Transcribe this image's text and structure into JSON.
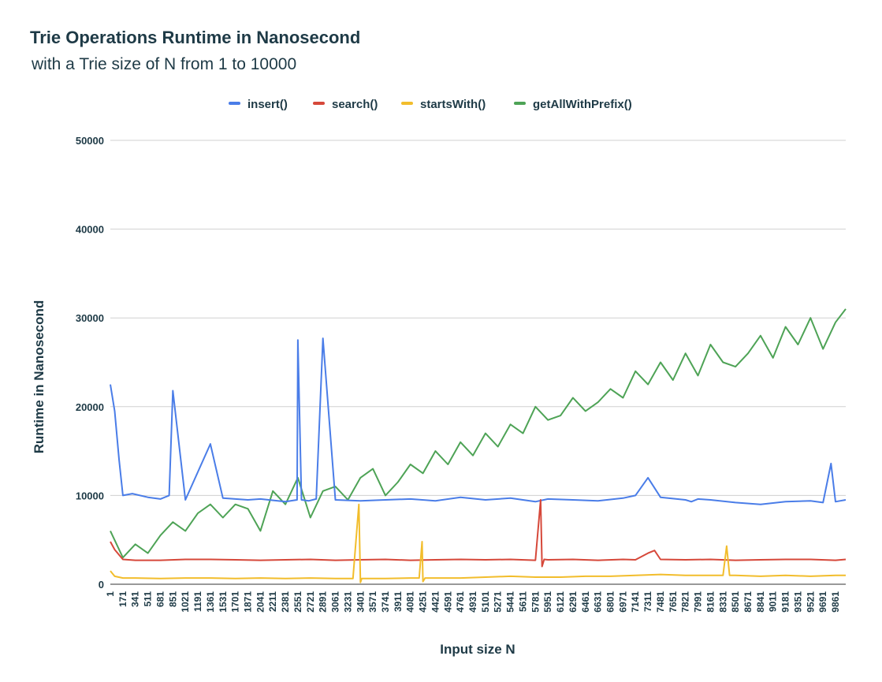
{
  "chart_data": {
    "type": "line",
    "title": "Trie Operations Runtime in Nanosecond",
    "subtitle": "with a Trie size of N from 1 to 10000",
    "xlabel": "Input size N",
    "ylabel": "Runtime in Nanosecond",
    "ylim": [
      0,
      50000
    ],
    "yticks": [
      0,
      10000,
      20000,
      30000,
      40000,
      50000
    ],
    "xlim": [
      1,
      10000
    ],
    "xticks": [
      "1",
      "171",
      "341",
      "511",
      "681",
      "851",
      "1021",
      "1191",
      "1361",
      "1531",
      "1701",
      "1871",
      "2041",
      "2211",
      "2381",
      "2551",
      "2721",
      "2891",
      "3061",
      "3231",
      "3401",
      "3571",
      "3741",
      "3911",
      "4081",
      "4251",
      "4421",
      "4591",
      "4761",
      "4931",
      "5101",
      "5271",
      "5441",
      "5611",
      "5781",
      "5951",
      "6121",
      "6291",
      "6461",
      "6631",
      "6801",
      "6971",
      "7141",
      "7311",
      "7481",
      "7651",
      "7821",
      "7991",
      "8161",
      "8331",
      "8501",
      "8671",
      "8841",
      "9011",
      "9181",
      "9351",
      "9521",
      "9691",
      "9861"
    ],
    "grid": true,
    "legend_position": "top",
    "series": [
      {
        "name": "insert()",
        "color": "#4a7de8",
        "x": [
          1,
          60,
          120,
          171,
          300,
          511,
          681,
          800,
          851,
          1021,
          1361,
          1531,
          1871,
          2041,
          2381,
          2540,
          2551,
          2600,
          2700,
          2800,
          2891,
          3061,
          3401,
          3741,
          4081,
          4421,
          4761,
          5101,
          5441,
          5781,
          5951,
          6291,
          6631,
          6971,
          7141,
          7311,
          7481,
          7821,
          7900,
          7991,
          8161,
          8501,
          8841,
          9181,
          9521,
          9691,
          9800,
          9861,
          10000
        ],
        "y": [
          22500,
          19500,
          14000,
          10000,
          10200,
          9800,
          9600,
          10000,
          21800,
          9500,
          15800,
          9700,
          9500,
          9600,
          9300,
          9500,
          27500,
          9500,
          9400,
          9600,
          27700,
          9500,
          9400,
          9500,
          9600,
          9400,
          9800,
          9500,
          9700,
          9300,
          9600,
          9500,
          9400,
          9700,
          10000,
          12000,
          9800,
          9500,
          9300,
          9600,
          9500,
          9200,
          9000,
          9300,
          9400,
          9200,
          13600,
          9300,
          9500
        ]
      },
      {
        "name": "search()",
        "color": "#d6483a",
        "x": [
          1,
          60,
          171,
          341,
          681,
          1021,
          1361,
          1701,
          2041,
          2381,
          2721,
          3061,
          3401,
          3741,
          4081,
          4421,
          4761,
          5101,
          5441,
          5781,
          5851,
          5871,
          5900,
          5951,
          6291,
          6631,
          6971,
          7141,
          7311,
          7400,
          7481,
          7821,
          8161,
          8501,
          8841,
          9181,
          9521,
          9861,
          10000
        ],
        "y": [
          4800,
          3900,
          2800,
          2700,
          2700,
          2800,
          2800,
          2750,
          2700,
          2750,
          2800,
          2700,
          2750,
          2800,
          2700,
          2750,
          2800,
          2750,
          2800,
          2700,
          9500,
          2000,
          2800,
          2750,
          2800,
          2700,
          2800,
          2750,
          3500,
          3800,
          2800,
          2750,
          2800,
          2700,
          2750,
          2800,
          2800,
          2700,
          2800
        ]
      },
      {
        "name": "startsWith()",
        "color": "#f2bd2c",
        "x": [
          1,
          60,
          171,
          341,
          681,
          1021,
          1361,
          1701,
          2041,
          2381,
          2721,
          3061,
          3300,
          3380,
          3401,
          3420,
          3741,
          4081,
          4200,
          4240,
          4251,
          4280,
          4421,
          4761,
          5101,
          5441,
          5781,
          6121,
          6461,
          6801,
          7141,
          7481,
          7821,
          8161,
          8331,
          8381,
          8420,
          8501,
          8841,
          9181,
          9521,
          9861,
          10000
        ],
        "y": [
          1500,
          900,
          700,
          700,
          650,
          700,
          700,
          650,
          700,
          650,
          700,
          650,
          650,
          9000,
          200,
          650,
          650,
          700,
          700,
          4800,
          300,
          700,
          700,
          700,
          800,
          900,
          800,
          800,
          900,
          900,
          1000,
          1100,
          1000,
          1000,
          1000,
          4300,
          1000,
          1000,
          900,
          1000,
          900,
          1000,
          1000
        ]
      },
      {
        "name": "getAllWithPrefix()",
        "color": "#4ea356",
        "x": [
          1,
          171,
          341,
          511,
          681,
          851,
          1021,
          1191,
          1361,
          1531,
          1701,
          1871,
          2041,
          2211,
          2381,
          2551,
          2721,
          2891,
          3061,
          3231,
          3401,
          3571,
          3741,
          3911,
          4081,
          4251,
          4421,
          4591,
          4761,
          4931,
          5101,
          5271,
          5441,
          5611,
          5781,
          5951,
          6121,
          6291,
          6461,
          6631,
          6801,
          6971,
          7141,
          7311,
          7481,
          7651,
          7821,
          7991,
          8161,
          8331,
          8501,
          8671,
          8841,
          9011,
          9181,
          9351,
          9521,
          9691,
          9861,
          10000
        ],
        "y": [
          6000,
          3000,
          4500,
          3500,
          5500,
          7000,
          6000,
          8000,
          9000,
          7500,
          9000,
          8500,
          6000,
          10500,
          9000,
          12000,
          7500,
          10500,
          11000,
          9500,
          12000,
          13000,
          10000,
          11500,
          13500,
          12500,
          15000,
          13500,
          16000,
          14500,
          17000,
          15500,
          18000,
          17000,
          20000,
          18500,
          19000,
          21000,
          19500,
          20500,
          22000,
          21000,
          24000,
          22500,
          25000,
          23000,
          26000,
          23500,
          27000,
          25000,
          24500,
          26000,
          28000,
          25500,
          29000,
          27000,
          30000,
          26500,
          29500,
          31000
        ]
      }
    ]
  }
}
